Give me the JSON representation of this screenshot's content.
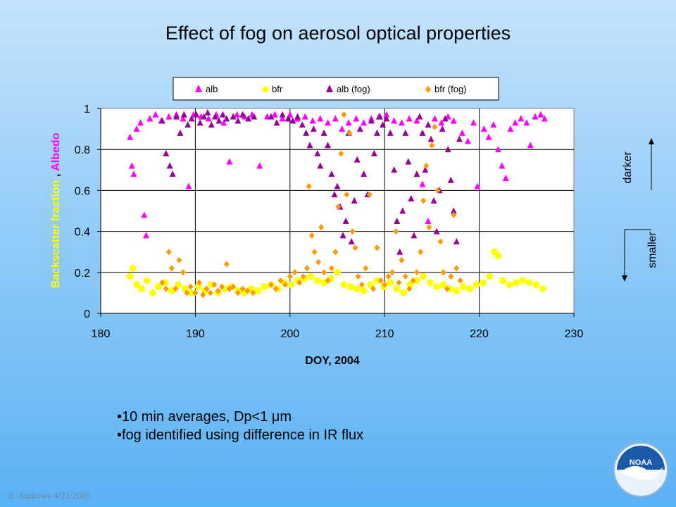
{
  "title": "Effect of fog on aerosol optical properties",
  "bullets": [
    "•10 min averages, Dp<1 μm",
    "•fog identified using difference in IR flux"
  ],
  "footer": "E. Andrews  4/21/2005",
  "logo_text": "NOAA",
  "side_labels": {
    "darker": "darker",
    "smaller": "smaller"
  },
  "chart_data": {
    "type": "scatter",
    "title": "",
    "xlabel": "DOY, 2004",
    "ylabel_parts": [
      "Backscatter fraction",
      " , ",
      "Albedo"
    ],
    "xlim": [
      180,
      230
    ],
    "ylim": [
      0,
      1
    ],
    "xticks": [
      "180",
      "190",
      "200",
      "210",
      "220",
      "230"
    ],
    "yticks": [
      "0",
      "0.2",
      "0.4",
      "0.6",
      "0.8",
      "1"
    ],
    "grid": true,
    "legend_position": "top",
    "colors": {
      "alb": "#ff00ff",
      "bfr": "#ffff00",
      "alb_fog": "#990099",
      "bfr_fog": "#ff9900"
    },
    "series": [
      {
        "name": "alb",
        "marker": "triangle",
        "color": "#ff00ff",
        "points": [
          [
            183.1,
            0.86
          ],
          [
            183.3,
            0.72
          ],
          [
            183.5,
            0.68
          ],
          [
            183.8,
            0.9
          ],
          [
            184.2,
            0.93
          ],
          [
            184.6,
            0.48
          ],
          [
            184.8,
            0.38
          ],
          [
            185.2,
            0.95
          ],
          [
            185.8,
            0.97
          ],
          [
            186.4,
            0.94
          ],
          [
            187.2,
            0.96
          ],
          [
            188,
            0.97
          ],
          [
            188.7,
            0.95
          ],
          [
            189.3,
            0.62
          ],
          [
            189.8,
            0.97
          ],
          [
            190.6,
            0.96
          ],
          [
            191.4,
            0.95
          ],
          [
            192.2,
            0.97
          ],
          [
            193,
            0.93
          ],
          [
            193.6,
            0.74
          ],
          [
            194.4,
            0.97
          ],
          [
            195.2,
            0.96
          ],
          [
            196,
            0.97
          ],
          [
            196.8,
            0.72
          ],
          [
            197.6,
            0.96
          ],
          [
            198.4,
            0.97
          ],
          [
            199.2,
            0.95
          ],
          [
            200,
            0.97
          ],
          [
            200.8,
            0.95
          ],
          [
            201.6,
            0.96
          ],
          [
            202.4,
            0.94
          ],
          [
            203.2,
            0.95
          ],
          [
            204,
            0.93
          ],
          [
            204.8,
            0.95
          ],
          [
            205.5,
            0.9
          ],
          [
            206.2,
            0.93
          ],
          [
            207,
            0.95
          ],
          [
            207.8,
            0.93
          ],
          [
            208.6,
            0.95
          ],
          [
            209.4,
            0.96
          ],
          [
            210.2,
            0.97
          ],
          [
            211,
            0.94
          ],
          [
            211.8,
            0.93
          ],
          [
            212.6,
            0.95
          ],
          [
            213.4,
            0.94
          ],
          [
            214,
            0.63
          ],
          [
            214.6,
            0.45
          ],
          [
            215.3,
            0.95
          ],
          [
            216,
            0.93
          ],
          [
            216.7,
            0.96
          ],
          [
            217.3,
            0.94
          ],
          [
            218.2,
            0.88
          ],
          [
            218.8,
            0.84
          ],
          [
            219.4,
            0.93
          ],
          [
            219.8,
            0.62
          ],
          [
            220.5,
            0.9
          ],
          [
            221,
            0.86
          ],
          [
            221.5,
            0.92
          ],
          [
            222,
            0.8
          ],
          [
            222.4,
            0.72
          ],
          [
            222.8,
            0.66
          ],
          [
            223.3,
            0.9
          ],
          [
            223.8,
            0.93
          ],
          [
            224.4,
            0.95
          ],
          [
            225,
            0.93
          ],
          [
            225.4,
            0.82
          ],
          [
            225.9,
            0.96
          ],
          [
            226.5,
            0.97
          ],
          [
            226.9,
            0.95
          ]
        ]
      },
      {
        "name": "bfr",
        "marker": "circle",
        "color": "#ffff00",
        "points": [
          [
            183.1,
            0.18
          ],
          [
            183.4,
            0.22
          ],
          [
            183.8,
            0.14
          ],
          [
            184.3,
            0.12
          ],
          [
            184.9,
            0.16
          ],
          [
            185.5,
            0.1
          ],
          [
            186.1,
            0.13
          ],
          [
            186.8,
            0.15
          ],
          [
            187.5,
            0.11
          ],
          [
            188.2,
            0.14
          ],
          [
            188.9,
            0.12
          ],
          [
            189.6,
            0.1
          ],
          [
            190.3,
            0.13
          ],
          [
            191,
            0.11
          ],
          [
            191.7,
            0.14
          ],
          [
            192.4,
            0.1
          ],
          [
            193.1,
            0.12
          ],
          [
            193.8,
            0.13
          ],
          [
            194.5,
            0.11
          ],
          [
            195.2,
            0.1
          ],
          [
            195.9,
            0.12
          ],
          [
            196.6,
            0.11
          ],
          [
            197.3,
            0.13
          ],
          [
            198,
            0.14
          ],
          [
            198.7,
            0.12
          ],
          [
            199.4,
            0.15
          ],
          [
            200.1,
            0.14
          ],
          [
            200.8,
            0.16
          ],
          [
            201.5,
            0.17
          ],
          [
            202.2,
            0.18
          ],
          [
            202.9,
            0.16
          ],
          [
            203.6,
            0.15
          ],
          [
            204.3,
            0.17
          ],
          [
            205,
            0.2
          ],
          [
            205.7,
            0.14
          ],
          [
            206.4,
            0.13
          ],
          [
            207.1,
            0.12
          ],
          [
            207.8,
            0.11
          ],
          [
            208.5,
            0.14
          ],
          [
            209.2,
            0.16
          ],
          [
            209.9,
            0.13
          ],
          [
            210.6,
            0.15
          ],
          [
            211.3,
            0.12
          ],
          [
            212,
            0.1
          ],
          [
            212.7,
            0.14
          ],
          [
            213.4,
            0.16
          ],
          [
            214.1,
            0.18
          ],
          [
            214.8,
            0.15
          ],
          [
            215.5,
            0.13
          ],
          [
            216.2,
            0.14
          ],
          [
            216.9,
            0.12
          ],
          [
            217.6,
            0.11
          ],
          [
            218.3,
            0.13
          ],
          [
            219,
            0.12
          ],
          [
            219.7,
            0.14
          ],
          [
            220.4,
            0.15
          ],
          [
            221.1,
            0.18
          ],
          [
            221.6,
            0.3
          ],
          [
            222,
            0.28
          ],
          [
            222.5,
            0.16
          ],
          [
            223.2,
            0.14
          ],
          [
            223.9,
            0.15
          ],
          [
            224.6,
            0.16
          ],
          [
            225.3,
            0.15
          ],
          [
            226,
            0.14
          ],
          [
            226.7,
            0.12
          ]
        ]
      },
      {
        "name": "alb (fog)",
        "marker": "triangle",
        "color": "#990099",
        "points": [
          [
            186.5,
            0.94
          ],
          [
            186.9,
            0.78
          ],
          [
            187.3,
            0.72
          ],
          [
            187.6,
            0.68
          ],
          [
            188,
            0.96
          ],
          [
            188.4,
            0.88
          ],
          [
            188.8,
            0.97
          ],
          [
            189.2,
            0.92
          ],
          [
            189.6,
            0.95
          ],
          [
            190.1,
            0.97
          ],
          [
            190.5,
            0.93
          ],
          [
            190.9,
            0.96
          ],
          [
            191.3,
            0.98
          ],
          [
            191.7,
            0.92
          ],
          [
            192.1,
            0.96
          ],
          [
            192.5,
            0.94
          ],
          [
            192.9,
            0.97
          ],
          [
            193.3,
            0.95
          ],
          [
            194,
            0.96
          ],
          [
            194.5,
            0.94
          ],
          [
            195,
            0.97
          ],
          [
            195.6,
            0.95
          ],
          [
            196.2,
            0.96
          ],
          [
            198,
            0.96
          ],
          [
            198.6,
            0.93
          ],
          [
            199.2,
            0.97
          ],
          [
            199.8,
            0.95
          ],
          [
            200.3,
            0.94
          ],
          [
            200.8,
            0.96
          ],
          [
            201.3,
            0.92
          ],
          [
            201.7,
            0.88
          ],
          [
            202.1,
            0.82
          ],
          [
            202.5,
            0.9
          ],
          [
            202.9,
            0.78
          ],
          [
            203.2,
            0.72
          ],
          [
            203.6,
            0.88
          ],
          [
            204,
            0.82
          ],
          [
            204.4,
            0.68
          ],
          [
            204.7,
            0.58
          ],
          [
            205,
            0.62
          ],
          [
            205.3,
            0.52
          ],
          [
            205.6,
            0.38
          ],
          [
            205.9,
            0.45
          ],
          [
            206.2,
            0.88
          ],
          [
            206.5,
            0.35
          ],
          [
            206.8,
            0.55
          ],
          [
            207.1,
            0.75
          ],
          [
            207.4,
            0.9
          ],
          [
            207.8,
            0.68
          ],
          [
            208.2,
            0.58
          ],
          [
            208.6,
            0.94
          ],
          [
            208.9,
            0.78
          ],
          [
            209.2,
            0.88
          ],
          [
            209.5,
            0.96
          ],
          [
            209.8,
            0.92
          ],
          [
            210.2,
            0.95
          ],
          [
            210.6,
            0.88
          ],
          [
            211,
            0.7
          ],
          [
            211.3,
            0.45
          ],
          [
            211.6,
            0.3
          ],
          [
            211.9,
            0.5
          ],
          [
            212.2,
            0.88
          ],
          [
            212.5,
            0.74
          ],
          [
            212.8,
            0.56
          ],
          [
            213.1,
            0.38
          ],
          [
            213.4,
            0.68
          ],
          [
            213.7,
            0.96
          ],
          [
            214,
            0.88
          ],
          [
            214.3,
            0.7
          ],
          [
            214.6,
            0.92
          ],
          [
            214.9,
            0.85
          ],
          [
            215.2,
            0.55
          ],
          [
            215.5,
            0.4
          ],
          [
            215.8,
            0.6
          ],
          [
            216.1,
            0.9
          ],
          [
            216.4,
            0.95
          ],
          [
            216.7,
            0.8
          ],
          [
            217,
            0.65
          ],
          [
            217.3,
            0.5
          ],
          [
            217.6,
            0.35
          ],
          [
            217.9,
            0.85
          ]
        ]
      },
      {
        "name": "bfr (fog)",
        "marker": "diamond",
        "color": "#ff9900",
        "points": [
          [
            186.5,
            0.15
          ],
          [
            186.9,
            0.12
          ],
          [
            187.2,
            0.3
          ],
          [
            187.5,
            0.22
          ],
          [
            187.9,
            0.12
          ],
          [
            188.3,
            0.26
          ],
          [
            188.7,
            0.2
          ],
          [
            189.1,
            0.1
          ],
          [
            189.5,
            0.13
          ],
          [
            190,
            0.1
          ],
          [
            190.4,
            0.15
          ],
          [
            190.8,
            0.09
          ],
          [
            191.2,
            0.12
          ],
          [
            191.6,
            0.1
          ],
          [
            192,
            0.14
          ],
          [
            192.4,
            0.11
          ],
          [
            192.8,
            0.13
          ],
          [
            193.3,
            0.24
          ],
          [
            193.6,
            0.12
          ],
          [
            194,
            0.13
          ],
          [
            194.5,
            0.1
          ],
          [
            195,
            0.12
          ],
          [
            195.5,
            0.11
          ],
          [
            196.1,
            0.1
          ],
          [
            198,
            0.14
          ],
          [
            198.5,
            0.12
          ],
          [
            199,
            0.16
          ],
          [
            199.5,
            0.14
          ],
          [
            200,
            0.18
          ],
          [
            200.5,
            0.2
          ],
          [
            201,
            0.15
          ],
          [
            201.4,
            0.18
          ],
          [
            201.8,
            0.22
          ],
          [
            202,
            0.62
          ],
          [
            202.3,
            0.38
          ],
          [
            202.6,
            0.3
          ],
          [
            203,
            0.25
          ],
          [
            203.3,
            0.42
          ],
          [
            203.6,
            0.2
          ],
          [
            204,
            0.16
          ],
          [
            204.4,
            0.22
          ],
          [
            204.8,
            0.3
          ],
          [
            205.1,
            0.52
          ],
          [
            205.4,
            0.78
          ],
          [
            205.7,
            0.97
          ],
          [
            206,
            0.58
          ],
          [
            206.3,
            0.88
          ],
          [
            206.6,
            0.4
          ],
          [
            206.9,
            0.32
          ],
          [
            207.2,
            0.18
          ],
          [
            207.6,
            0.14
          ],
          [
            208,
            0.22
          ],
          [
            208.4,
            0.58
          ],
          [
            208.8,
            0.12
          ],
          [
            209.2,
            0.32
          ],
          [
            209.6,
            0.16
          ],
          [
            210,
            0.14
          ],
          [
            210.4,
            0.18
          ],
          [
            210.8,
            0.2
          ],
          [
            211.2,
            0.4
          ],
          [
            211.5,
            0.15
          ],
          [
            211.8,
            0.26
          ],
          [
            212.2,
            0.18
          ],
          [
            212.6,
            0.12
          ],
          [
            213,
            0.16
          ],
          [
            213.4,
            0.2
          ],
          [
            213.8,
            0.3
          ],
          [
            214.1,
            0.55
          ],
          [
            214.4,
            0.72
          ],
          [
            214.7,
            0.42
          ],
          [
            215,
            0.82
          ],
          [
            215.3,
            0.91
          ],
          [
            215.6,
            0.6
          ],
          [
            215.9,
            0.35
          ],
          [
            216.2,
            0.2
          ],
          [
            216.6,
            0.12
          ],
          [
            217,
            0.18
          ],
          [
            217.3,
            0.48
          ],
          [
            217.6,
            0.22
          ],
          [
            218,
            0.16
          ]
        ]
      }
    ]
  }
}
